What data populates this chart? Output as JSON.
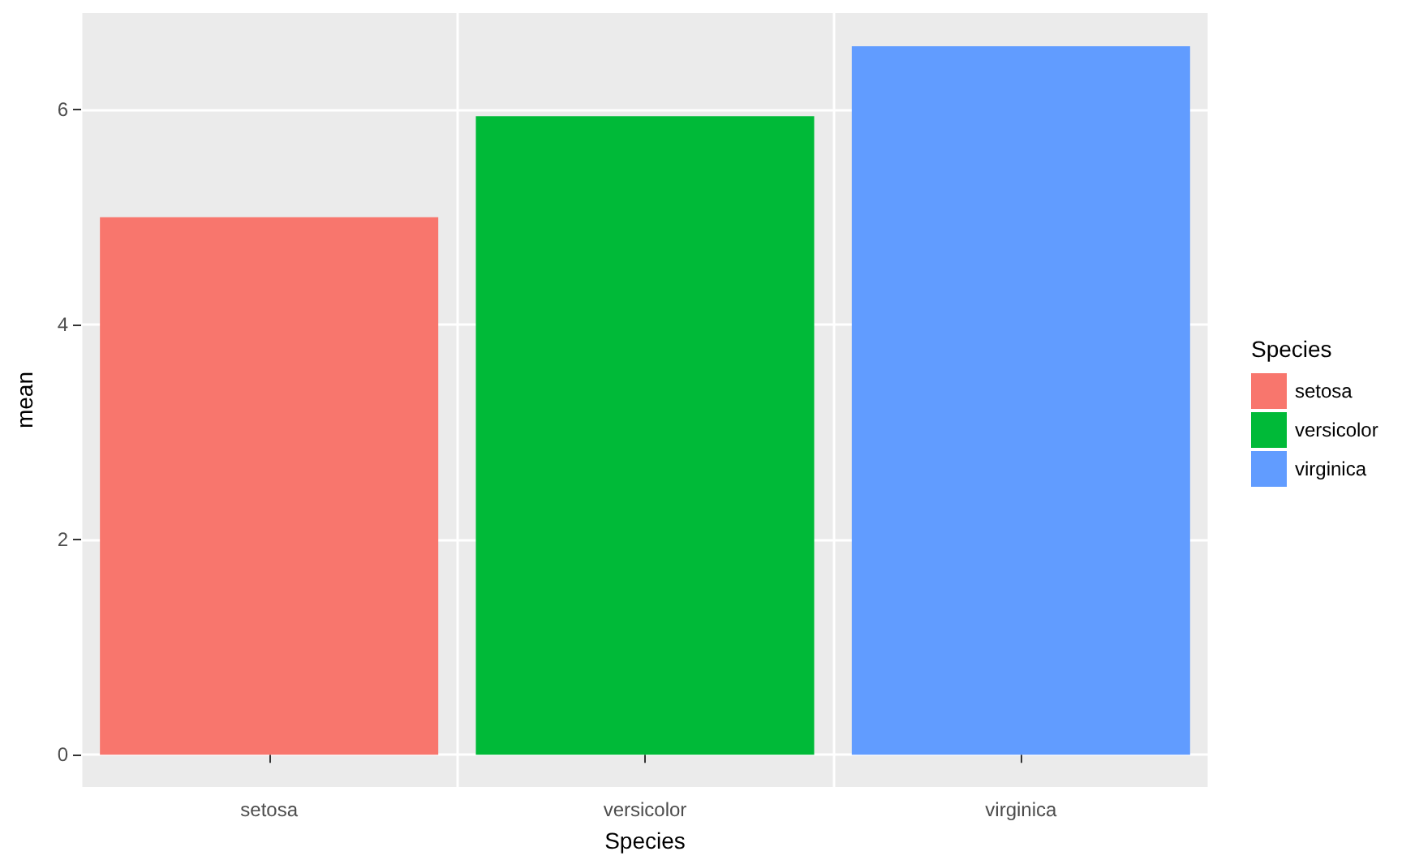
{
  "chart_data": {
    "type": "bar",
    "xlabel": "Species",
    "ylabel": "mean",
    "legend_title": "Species",
    "categories": [
      "setosa",
      "versicolor",
      "virginica"
    ],
    "series": [
      {
        "name": "setosa",
        "color": "#f8766d",
        "values": [
          5.0,
          null,
          null
        ]
      },
      {
        "name": "versicolor",
        "color": "#00ba38",
        "values": [
          null,
          5.94,
          null
        ]
      },
      {
        "name": "virginica",
        "color": "#619cff",
        "values": [
          null,
          null,
          6.59
        ]
      }
    ],
    "stacked": true,
    "ylim": [
      -0.3,
      6.9
    ],
    "yticks": [
      0,
      2,
      4,
      6
    ],
    "grid": true,
    "legend": "right"
  }
}
